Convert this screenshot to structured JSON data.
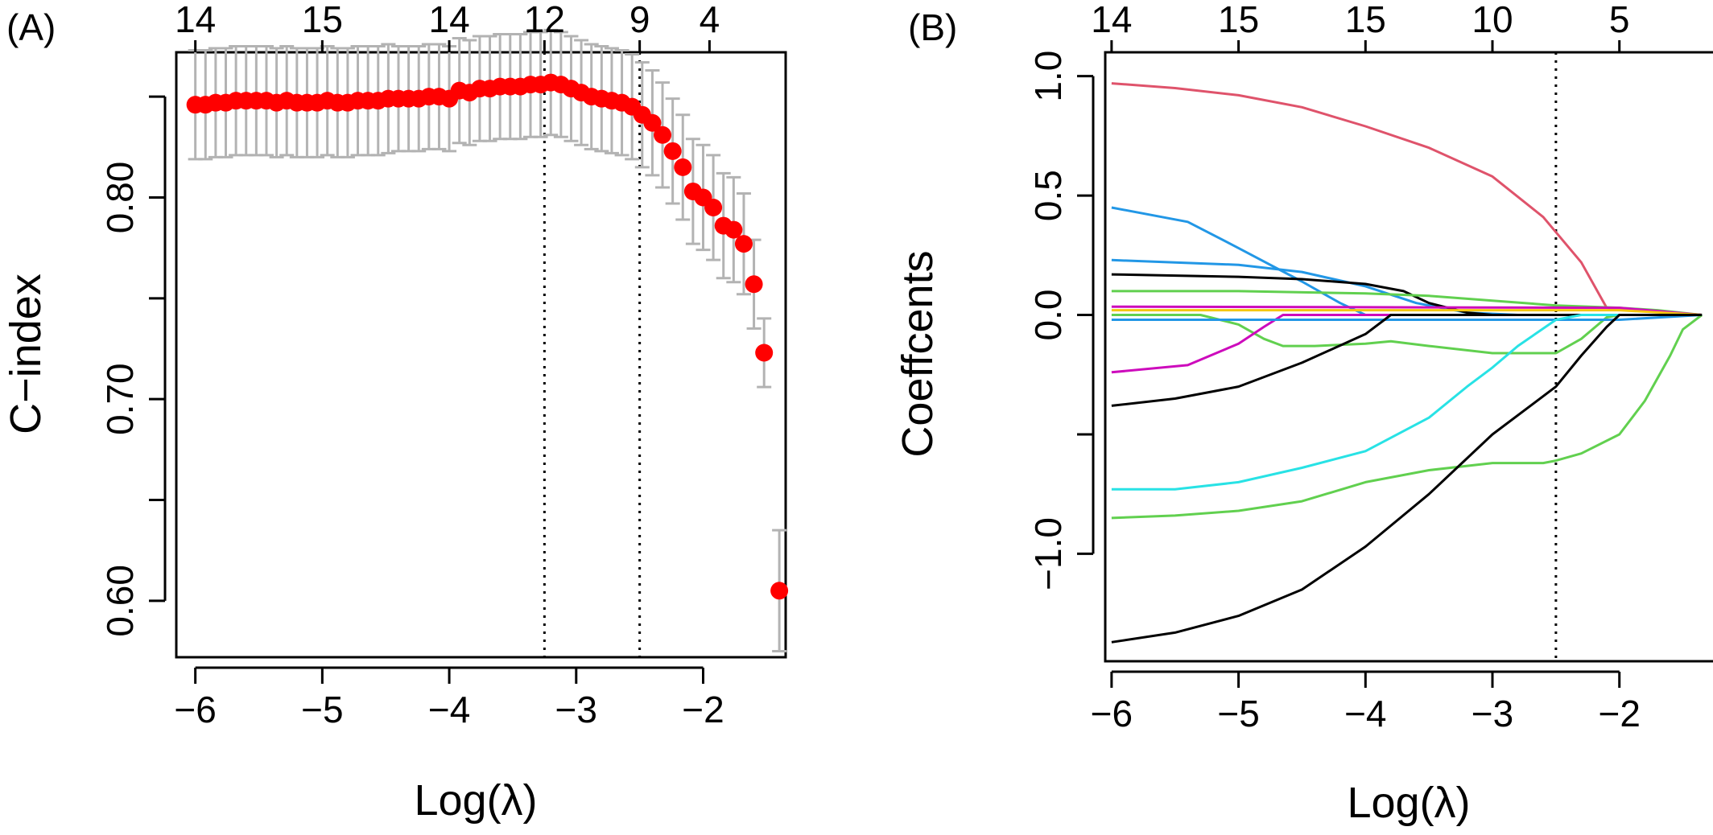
{
  "panels": [
    {
      "label": "(A)"
    },
    {
      "label": "(B)"
    }
  ],
  "chart_data": [
    {
      "type": "scatter",
      "panel": "(A)",
      "xlabel": "Log(λ)",
      "ylabel": "C−index",
      "xlim": [
        -6.15,
        -1.35
      ],
      "ylim": [
        0.572,
        0.872
      ],
      "x_ticks": [
        -6,
        -5,
        -4,
        -3,
        -2
      ],
      "x_tick_labels": [
        "−6",
        "−5",
        "−4",
        "−3",
        "−2"
      ],
      "y_ticks": [
        0.6,
        0.65,
        0.7,
        0.75,
        0.8,
        0.85
      ],
      "y_tick_labels": [
        "0.60",
        "",
        "0.70",
        "",
        "0.80",
        ""
      ],
      "top_ticks": [
        -6,
        -5,
        -4,
        -3.25,
        -2.5,
        -1.95
      ],
      "top_tick_labels": [
        "14",
        "15",
        "14",
        "12",
        "9",
        "4"
      ],
      "vlines": [
        -3.25,
        -2.5
      ],
      "point_color": "#ff0000",
      "errorbar_color": "#b3b3b3",
      "x": [
        -6.0,
        -5.92,
        -5.84,
        -5.76,
        -5.68,
        -5.6,
        -5.52,
        -5.44,
        -5.36,
        -5.28,
        -5.2,
        -5.12,
        -5.04,
        -4.96,
        -4.88,
        -4.8,
        -4.72,
        -4.64,
        -4.56,
        -4.48,
        -4.4,
        -4.32,
        -4.24,
        -4.16,
        -4.08,
        -4.0,
        -3.92,
        -3.84,
        -3.76,
        -3.68,
        -3.6,
        -3.52,
        -3.44,
        -3.36,
        -3.28,
        -3.2,
        -3.12,
        -3.04,
        -2.96,
        -2.88,
        -2.8,
        -2.72,
        -2.64,
        -2.56,
        -2.48,
        -2.4,
        -2.32,
        -2.24,
        -2.16,
        -2.08,
        -2.0,
        -1.92,
        -1.84,
        -1.76,
        -1.68,
        -1.6,
        -1.52,
        -1.4
      ],
      "y": [
        0.846,
        0.846,
        0.847,
        0.847,
        0.848,
        0.848,
        0.848,
        0.848,
        0.847,
        0.848,
        0.847,
        0.847,
        0.847,
        0.848,
        0.847,
        0.847,
        0.848,
        0.848,
        0.848,
        0.849,
        0.849,
        0.849,
        0.849,
        0.85,
        0.85,
        0.849,
        0.853,
        0.852,
        0.854,
        0.854,
        0.855,
        0.855,
        0.855,
        0.856,
        0.856,
        0.857,
        0.856,
        0.854,
        0.852,
        0.85,
        0.849,
        0.848,
        0.847,
        0.845,
        0.841,
        0.837,
        0.831,
        0.823,
        0.815,
        0.803,
        0.8,
        0.795,
        0.786,
        0.784,
        0.777,
        0.757,
        0.723,
        0.605
      ],
      "err": [
        0.027,
        0.027,
        0.027,
        0.027,
        0.027,
        0.027,
        0.027,
        0.027,
        0.027,
        0.027,
        0.027,
        0.027,
        0.027,
        0.027,
        0.027,
        0.027,
        0.027,
        0.027,
        0.027,
        0.027,
        0.026,
        0.026,
        0.026,
        0.026,
        0.026,
        0.026,
        0.026,
        0.026,
        0.026,
        0.026,
        0.026,
        0.026,
        0.026,
        0.026,
        0.026,
        0.026,
        0.026,
        0.026,
        0.026,
        0.026,
        0.026,
        0.026,
        0.026,
        0.026,
        0.026,
        0.026,
        0.026,
        0.026,
        0.026,
        0.026,
        0.026,
        0.026,
        0.026,
        0.026,
        0.025,
        0.022,
        0.017,
        0.03
      ]
    },
    {
      "type": "line",
      "panel": "(B)",
      "xlabel": "Log(λ)",
      "ylabel": "Coeffcents",
      "xlim": [
        -6.05,
        -1.25
      ],
      "ylim": [
        -1.45,
        1.1
      ],
      "x_ticks": [
        -6,
        -5,
        -4,
        -3,
        -2
      ],
      "x_tick_labels": [
        "−6",
        "−5",
        "−4",
        "−3",
        "−2"
      ],
      "y_ticks": [
        -1.0,
        -0.5,
        0.0,
        0.5,
        1.0
      ],
      "y_tick_labels": [
        "−1.0",
        "",
        "0.0",
        "0.5",
        "1.0"
      ],
      "top_ticks": [
        -6,
        -5,
        -4,
        -3,
        -2
      ],
      "top_tick_labels": [
        "14",
        "15",
        "15",
        "10",
        "5"
      ],
      "vlines": [
        -2.5
      ],
      "series": [
        {
          "color": "#df536b",
          "x": [
            -6.0,
            -5.5,
            -5.0,
            -4.5,
            -4.0,
            -3.5,
            -3.0,
            -2.6,
            -2.3,
            -2.1,
            -1.9,
            -1.6,
            -1.35
          ],
          "y": [
            0.97,
            0.95,
            0.92,
            0.87,
            0.79,
            0.7,
            0.58,
            0.41,
            0.22,
            0.03,
            0.02,
            0.01,
            0.0
          ]
        },
        {
          "color": "#2297e6",
          "x": [
            -6.0,
            -5.4,
            -5.0,
            -4.5,
            -4.2,
            -4.0,
            -3.6,
            -2.8,
            -2.0,
            -1.35
          ],
          "y": [
            0.45,
            0.39,
            0.28,
            0.14,
            0.05,
            0.0,
            0.0,
            0.0,
            0.0,
            0.0
          ]
        },
        {
          "color": "#2297e6",
          "x": [
            -6.0,
            -5.0,
            -4.5,
            -4.0,
            -3.6,
            -3.2,
            -2.8,
            -2.0,
            -1.35
          ],
          "y": [
            0.23,
            0.21,
            0.18,
            0.12,
            0.05,
            0.01,
            0.0,
            0.0,
            0.0
          ]
        },
        {
          "color": "#000000",
          "x": [
            -6.0,
            -5.0,
            -4.5,
            -4.0,
            -3.7,
            -3.5,
            -3.2,
            -3.0,
            -2.5,
            -2.0,
            -1.35
          ],
          "y": [
            0.17,
            0.16,
            0.15,
            0.13,
            0.1,
            0.05,
            0.01,
            0.0,
            0.0,
            0.0,
            0.0
          ]
        },
        {
          "color": "#61d04f",
          "x": [
            -6.0,
            -5.0,
            -4.0,
            -3.5,
            -3.0,
            -2.5,
            -2.0,
            -1.7,
            -1.35
          ],
          "y": [
            0.1,
            0.1,
            0.09,
            0.08,
            0.06,
            0.04,
            0.03,
            0.02,
            0.0
          ]
        },
        {
          "color": "#61d04f",
          "x": [
            -6.0,
            -5.3,
            -5.0,
            -4.8,
            -4.65,
            -4.4,
            -4.0,
            -3.8,
            -3.5,
            -3.0,
            -2.8,
            -2.5,
            -2.3,
            -2.1,
            -2.0,
            -1.35
          ],
          "y": [
            0.0,
            0.0,
            -0.04,
            -0.1,
            -0.13,
            -0.13,
            -0.12,
            -0.11,
            -0.13,
            -0.16,
            -0.16,
            -0.16,
            -0.1,
            -0.01,
            0.0,
            0.0
          ]
        },
        {
          "color": "#cd0bbc",
          "x": [
            -6.0,
            -5.4,
            -5.0,
            -4.8,
            -4.65,
            -4.5,
            -2.0,
            -1.35
          ],
          "y": [
            -0.24,
            -0.21,
            -0.12,
            -0.05,
            0.0,
            0.0,
            0.0,
            0.0
          ]
        },
        {
          "color": "#cd0bbc",
          "x": [
            -6.0,
            -2.0,
            -1.35
          ],
          "y": [
            0.035,
            0.03,
            0.0
          ]
        },
        {
          "color": "#f5c710",
          "x": [
            -6.0,
            -2.0,
            -1.35
          ],
          "y": [
            0.02,
            0.02,
            0.0
          ]
        },
        {
          "color": "#2297e6",
          "x": [
            -6.0,
            -2.0,
            -1.35
          ],
          "y": [
            -0.02,
            -0.02,
            0.0
          ]
        },
        {
          "color": "#000000",
          "x": [
            -6.0,
            -5.5,
            -5.0,
            -4.5,
            -4.0,
            -3.8,
            -3.6,
            -3.4,
            -3.0,
            -2.5,
            -2.0,
            -1.35
          ],
          "y": [
            -0.38,
            -0.35,
            -0.3,
            -0.2,
            -0.08,
            0.0,
            0.0,
            0.0,
            0.0,
            0.0,
            0.0,
            0.0
          ]
        },
        {
          "color": "#28e2e5",
          "x": [
            -6.0,
            -5.5,
            -5.0,
            -4.5,
            -4.0,
            -3.5,
            -3.2,
            -3.0,
            -2.8,
            -2.5,
            -2.3,
            -2.0,
            -1.35
          ],
          "y": [
            -0.73,
            -0.73,
            -0.7,
            -0.64,
            -0.57,
            -0.43,
            -0.3,
            -0.22,
            -0.13,
            -0.02,
            0.0,
            0.0,
            0.0
          ]
        },
        {
          "color": "#61d04f",
          "x": [
            -6.0,
            -5.5,
            -5.0,
            -4.5,
            -4.0,
            -3.5,
            -3.0,
            -2.6,
            -2.5,
            -2.3,
            -2.0,
            -1.8,
            -1.6,
            -1.5,
            -1.35
          ],
          "y": [
            -0.85,
            -0.84,
            -0.82,
            -0.78,
            -0.7,
            -0.65,
            -0.62,
            -0.62,
            -0.61,
            -0.58,
            -0.5,
            -0.36,
            -0.17,
            -0.06,
            0.0
          ]
        },
        {
          "color": "#000000",
          "x": [
            -6.0,
            -5.5,
            -5.0,
            -4.5,
            -4.0,
            -3.5,
            -3.0,
            -2.5,
            -2.3,
            -2.1,
            -2.0,
            -1.35
          ],
          "y": [
            -1.37,
            -1.33,
            -1.26,
            -1.15,
            -0.97,
            -0.75,
            -0.5,
            -0.3,
            -0.17,
            -0.05,
            0.0,
            0.0
          ]
        }
      ]
    }
  ]
}
